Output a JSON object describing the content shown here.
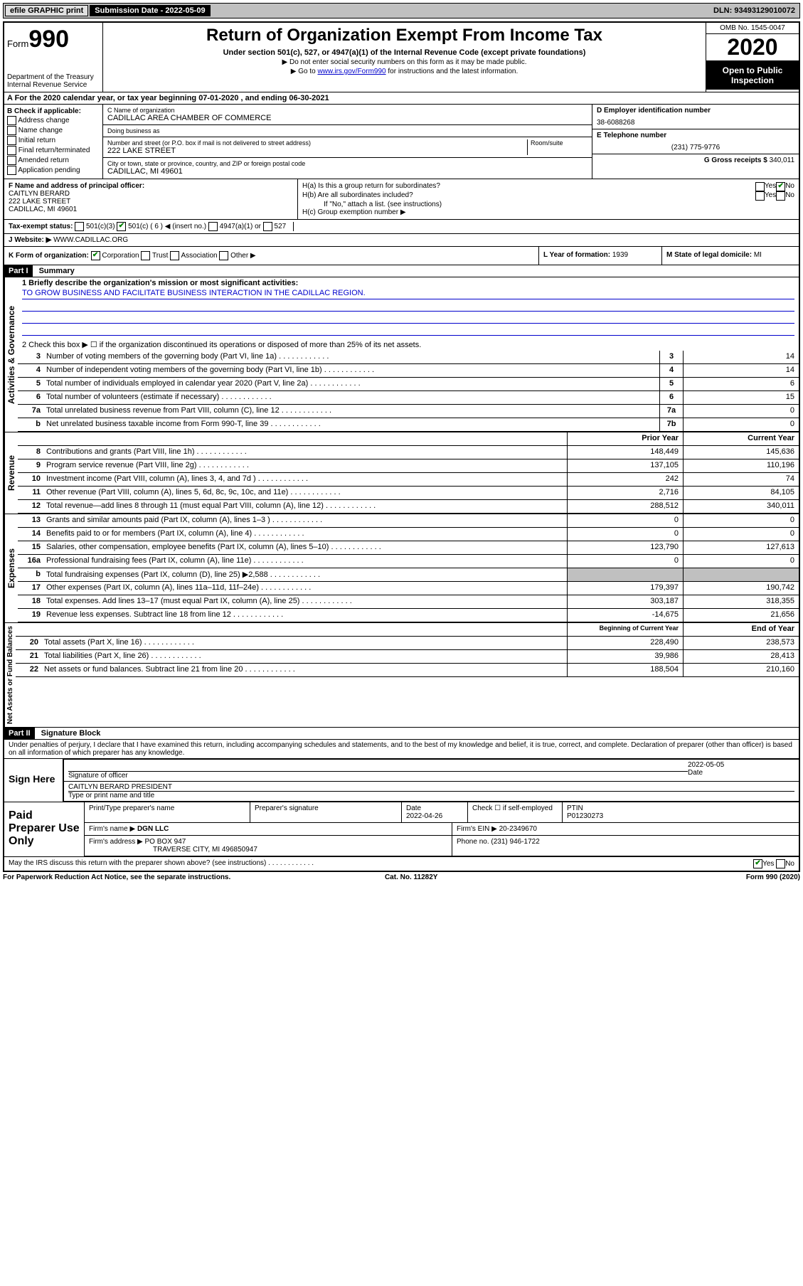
{
  "topbar": {
    "efile": "efile GRAPHIC print",
    "submission_lbl": "Submission Date - 2022-05-09",
    "dln": "DLN: 93493129010072"
  },
  "header": {
    "form_word": "Form",
    "form_num": "990",
    "dept": "Department of the Treasury\nInternal Revenue Service",
    "title": "Return of Organization Exempt From Income Tax",
    "sub": "Under section 501(c), 527, or 4947(a)(1) of the Internal Revenue Code (except private foundations)",
    "note1": "▶ Do not enter social security numbers on this form as it may be made public.",
    "note2_pre": "▶ Go to ",
    "note2_link": "www.irs.gov/Form990",
    "note2_post": " for instructions and the latest information.",
    "omb": "OMB No. 1545-0047",
    "year": "2020",
    "open": "Open to Public Inspection"
  },
  "row_a": "A For the 2020 calendar year, or tax year beginning 07-01-2020    , and ending 06-30-2021",
  "b": {
    "hdr": "B Check if applicable:",
    "opts": [
      "Address change",
      "Name change",
      "Initial return",
      "Final return/terminated",
      "Amended return",
      "Application pending"
    ]
  },
  "c": {
    "name_lbl": "C Name of organization",
    "name": "CADILLAC AREA CHAMBER OF COMMERCE",
    "dba_lbl": "Doing business as",
    "dba": "",
    "addr_lbl": "Number and street (or P.O. box if mail is not delivered to street address)",
    "room_lbl": "Room/suite",
    "addr": "222 LAKE STREET",
    "city_lbl": "City or town, state or province, country, and ZIP or foreign postal code",
    "city": "CADILLAC, MI  49601"
  },
  "d": {
    "lbl": "D Employer identification number",
    "val": "38-6088268"
  },
  "e": {
    "lbl": "E Telephone number",
    "val": "(231) 775-9776"
  },
  "g": {
    "lbl": "G Gross receipts $",
    "val": "340,011"
  },
  "f": {
    "lbl": "F  Name and address of principal officer:",
    "name": "CAITLYN BERARD",
    "addr1": "222 LAKE STREET",
    "addr2": "CADILLAC, MI  49601"
  },
  "h": {
    "a": "H(a)  Is this a group return for subordinates?",
    "b": "H(b)  Are all subordinates included?",
    "bnote": "If \"No,\" attach a list. (see instructions)",
    "c": "H(c)  Group exemption number ▶"
  },
  "i": {
    "lbl": "Tax-exempt status:",
    "opts": [
      "501(c)(3)",
      "501(c) ( 6 ) ◀ (insert no.)",
      "4947(a)(1) or",
      "527"
    ]
  },
  "j": {
    "lbl": "J   Website: ▶",
    "val": "WWW.CADILLAC.ORG"
  },
  "k": {
    "lbl": "K Form of organization:",
    "opts": [
      "Corporation",
      "Trust",
      "Association",
      "Other ▶"
    ]
  },
  "l": {
    "lbl": "L Year of formation:",
    "val": "1939"
  },
  "m": {
    "lbl": "M State of legal domicile:",
    "val": "MI"
  },
  "part1": {
    "hdr": "Part I",
    "title": "Summary",
    "q1": "1   Briefly describe the organization's mission or most significant activities:",
    "mission": "TO GROW BUSINESS AND FACILITATE BUSINESS INTERACTION IN THE CADILLAC REGION.",
    "q2": "2   Check this box ▶ ☐  if the organization discontinued its operations or disposed of more than 25% of its net assets."
  },
  "gov_lines": [
    {
      "n": "3",
      "d": "Number of voting members of the governing body (Part VI, line 1a)",
      "box": "3",
      "v": "14"
    },
    {
      "n": "4",
      "d": "Number of independent voting members of the governing body (Part VI, line 1b)",
      "box": "4",
      "v": "14"
    },
    {
      "n": "5",
      "d": "Total number of individuals employed in calendar year 2020 (Part V, line 2a)",
      "box": "5",
      "v": "6"
    },
    {
      "n": "6",
      "d": "Total number of volunteers (estimate if necessary)",
      "box": "6",
      "v": "15"
    },
    {
      "n": "7a",
      "d": "Total unrelated business revenue from Part VIII, column (C), line 12",
      "box": "7a",
      "v": "0"
    },
    {
      "n": "b",
      "d": "Net unrelated business taxable income from Form 990-T, line 39",
      "box": "7b",
      "v": "0"
    }
  ],
  "col_hdrs": {
    "prior": "Prior Year",
    "current": "Current Year"
  },
  "rev_lines": [
    {
      "n": "8",
      "d": "Contributions and grants (Part VIII, line 1h)",
      "p": "148,449",
      "c": "145,636"
    },
    {
      "n": "9",
      "d": "Program service revenue (Part VIII, line 2g)",
      "p": "137,105",
      "c": "110,196"
    },
    {
      "n": "10",
      "d": "Investment income (Part VIII, column (A), lines 3, 4, and 7d )",
      "p": "242",
      "c": "74"
    },
    {
      "n": "11",
      "d": "Other revenue (Part VIII, column (A), lines 5, 6d, 8c, 9c, 10c, and 11e)",
      "p": "2,716",
      "c": "84,105"
    },
    {
      "n": "12",
      "d": "Total revenue—add lines 8 through 11 (must equal Part VIII, column (A), line 12)",
      "p": "288,512",
      "c": "340,011"
    }
  ],
  "exp_lines": [
    {
      "n": "13",
      "d": "Grants and similar amounts paid (Part IX, column (A), lines 1–3 )",
      "p": "0",
      "c": "0"
    },
    {
      "n": "14",
      "d": "Benefits paid to or for members (Part IX, column (A), line 4)",
      "p": "0",
      "c": "0"
    },
    {
      "n": "15",
      "d": "Salaries, other compensation, employee benefits (Part IX, column (A), lines 5–10)",
      "p": "123,790",
      "c": "127,613"
    },
    {
      "n": "16a",
      "d": "Professional fundraising fees (Part IX, column (A), line 11e)",
      "p": "0",
      "c": "0"
    },
    {
      "n": "b",
      "d": "Total fundraising expenses (Part IX, column (D), line 25) ▶2,588",
      "p": "",
      "c": "",
      "shade": true
    },
    {
      "n": "17",
      "d": "Other expenses (Part IX, column (A), lines 11a–11d, 11f–24e)",
      "p": "179,397",
      "c": "190,742"
    },
    {
      "n": "18",
      "d": "Total expenses. Add lines 13–17 (must equal Part IX, column (A), line 25)",
      "p": "303,187",
      "c": "318,355"
    },
    {
      "n": "19",
      "d": "Revenue less expenses. Subtract line 18 from line 12",
      "p": "-14,675",
      "c": "21,656"
    }
  ],
  "na_hdrs": {
    "beg": "Beginning of Current Year",
    "end": "End of Year"
  },
  "na_lines": [
    {
      "n": "20",
      "d": "Total assets (Part X, line 16)",
      "p": "228,490",
      "c": "238,573"
    },
    {
      "n": "21",
      "d": "Total liabilities (Part X, line 26)",
      "p": "39,986",
      "c": "28,413"
    },
    {
      "n": "22",
      "d": "Net assets or fund balances. Subtract line 21 from line 20",
      "p": "188,504",
      "c": "210,160"
    }
  ],
  "side_labels": {
    "gov": "Activities & Governance",
    "rev": "Revenue",
    "exp": "Expenses",
    "na": "Net Assets or Fund Balances"
  },
  "part2": {
    "hdr": "Part II",
    "title": "Signature Block",
    "decl": "Under penalties of perjury, I declare that I have examined this return, including accompanying schedules and statements, and to the best of my knowledge and belief, it is true, correct, and complete. Declaration of preparer (other than officer) is based on all information of which preparer has any knowledge."
  },
  "sign": {
    "left": "Sign Here",
    "sig_lbl": "Signature of officer",
    "date_lbl": "Date",
    "date": "2022-05-05",
    "name": "CAITLYN BERARD  PRESIDENT",
    "name_lbl": "Type or print name and title"
  },
  "paid": {
    "left": "Paid Preparer Use Only",
    "h1": "Print/Type preparer's name",
    "h2": "Preparer's signature",
    "h3": "Date",
    "h3v": "2022-04-26",
    "h4": "Check ☐ if self-employed",
    "h5": "PTIN",
    "h5v": "P01230273",
    "firm_lbl": "Firm's name   ▶",
    "firm": "DGN LLC",
    "ein_lbl": "Firm's EIN ▶",
    "ein": "20-2349670",
    "addr_lbl": "Firm's address ▶",
    "addr1": "PO BOX 947",
    "addr2": "TRAVERSE CITY, MI  496850947",
    "phone_lbl": "Phone no.",
    "phone": "(231) 946-1722",
    "discuss": "May the IRS discuss this return with the preparer shown above? (see instructions)"
  },
  "footer": {
    "left": "For Paperwork Reduction Act Notice, see the separate instructions.",
    "mid": "Cat. No. 11282Y",
    "right": "Form 990 (2020)"
  }
}
